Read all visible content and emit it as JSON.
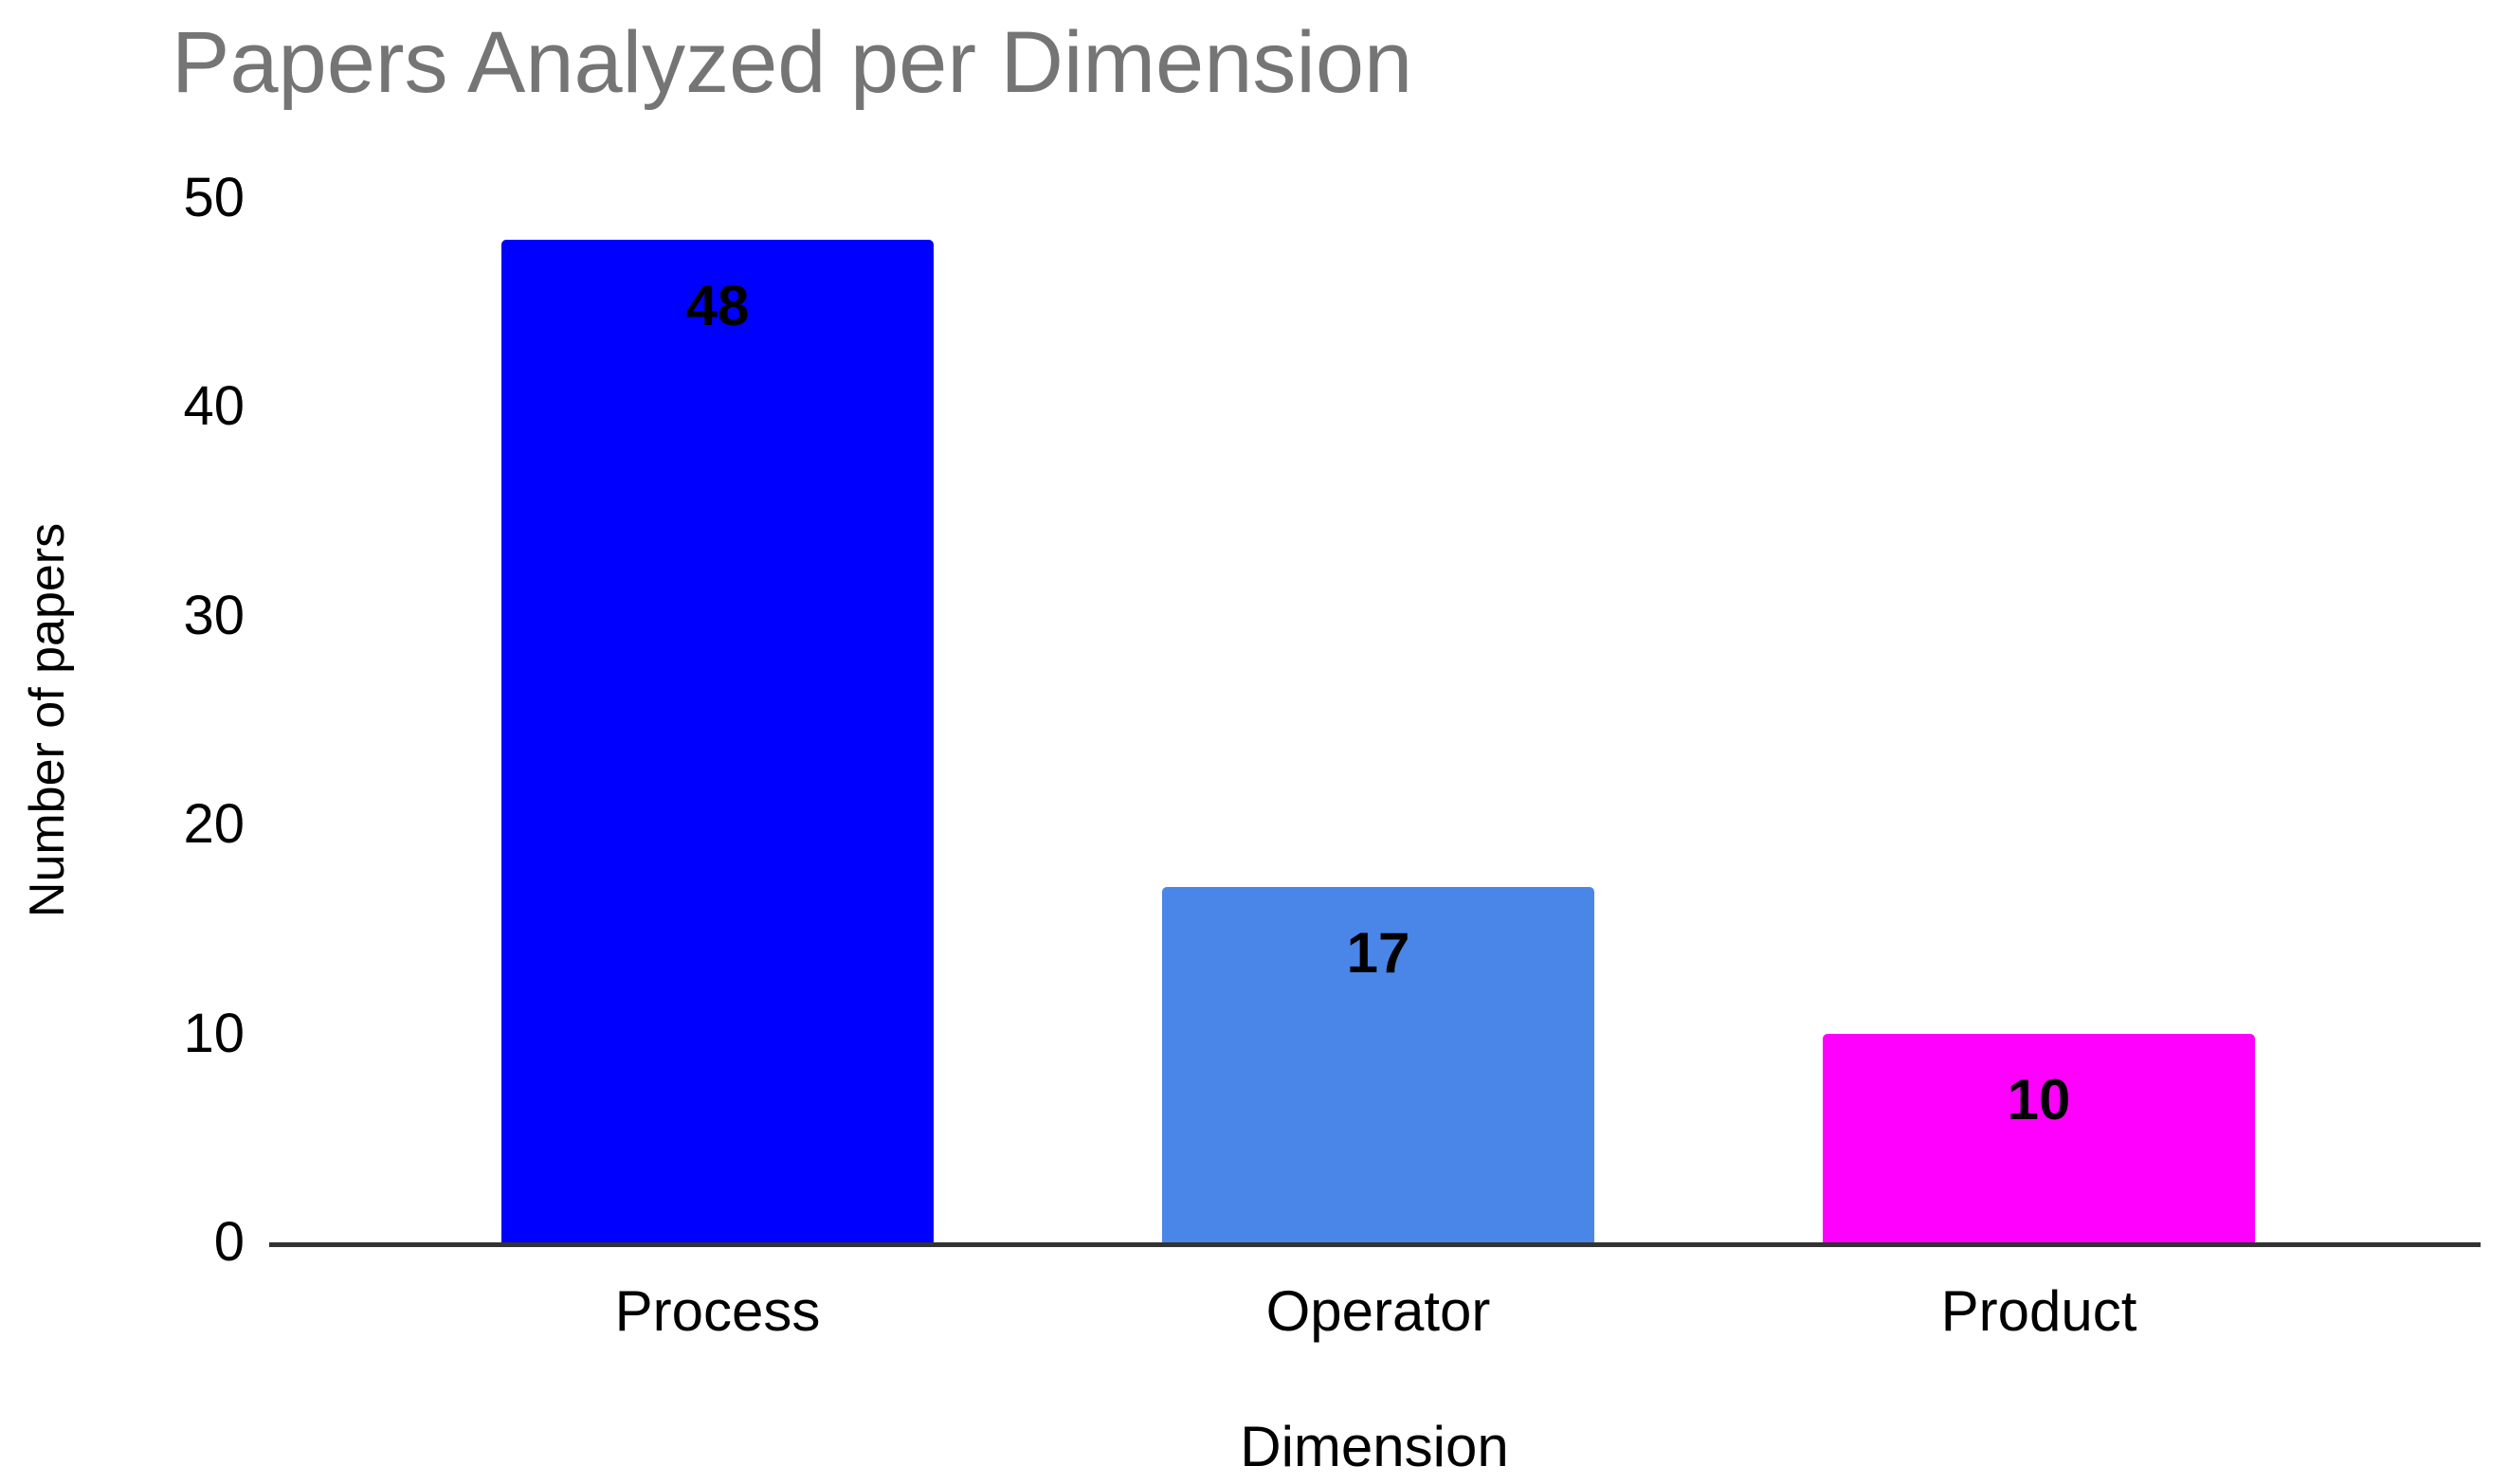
{
  "chart_data": {
    "type": "bar",
    "title": "Papers Analyzed per Dimension",
    "xlabel": "Dimension",
    "ylabel": "Number of papers",
    "categories": [
      "Process",
      "Operator",
      "Product"
    ],
    "values": [
      48,
      17,
      10
    ],
    "bar_colors": [
      "#0000ff",
      "#4a86e8",
      "#ff00ff"
    ],
    "ylim": [
      0,
      50
    ],
    "yticks": [
      0,
      10,
      20,
      30,
      40,
      50
    ],
    "grid": false,
    "legend": "none",
    "value_labels_shown": true,
    "colors": {
      "title_text": "#757575",
      "axis_text": "#000000",
      "value_label_text": "#000000",
      "axis_line": "#333333",
      "background": "#ffffff"
    }
  }
}
